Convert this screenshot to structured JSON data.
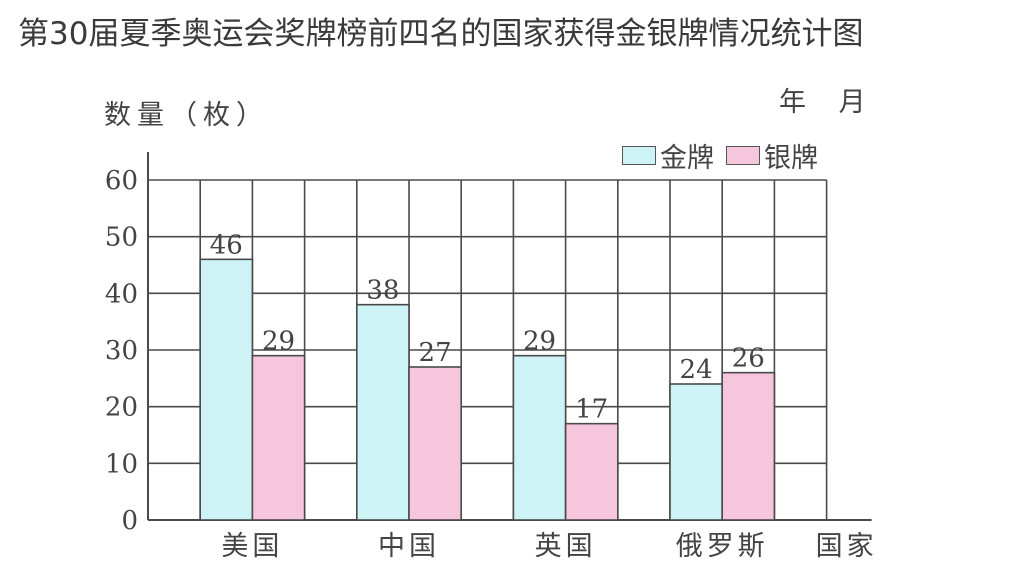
{
  "title": "第30届夏季奥运会奖牌榜前四名的国家获得金银牌情况统计图",
  "y_axis_label": "数量（枚）",
  "x_axis_label": "国家",
  "date_label": "年 月",
  "legend": [
    {
      "label": "金牌",
      "color": "#cdf3f7"
    },
    {
      "label": "银牌",
      "color": "#f6c6dc"
    }
  ],
  "chart_data": {
    "type": "bar",
    "title": "第30届夏季奥运会奖牌榜前四名的国家获得金银牌情况统计图",
    "xlabel": "国家",
    "ylabel": "数量（枚）",
    "categories": [
      "美国",
      "中国",
      "英国",
      "俄罗斯"
    ],
    "series": [
      {
        "name": "金牌",
        "values": [
          46,
          38,
          29,
          24
        ],
        "color": "#cdf3f7"
      },
      {
        "name": "银牌",
        "values": [
          29,
          27,
          17,
          26
        ],
        "color": "#f6c6dc"
      }
    ],
    "ylim": [
      0,
      60
    ],
    "yticks": [
      0,
      10,
      20,
      30,
      40,
      50,
      60
    ],
    "grid": true,
    "legend_position": "top-right",
    "data_labels": true
  }
}
